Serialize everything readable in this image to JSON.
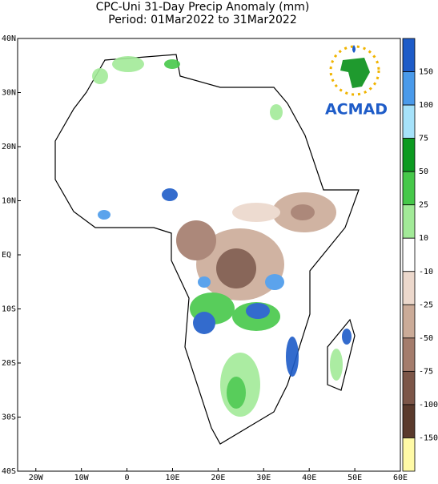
{
  "title": "CPC-Uni 31-Day Precip Anomaly (mm)",
  "subtitle": "Period: 01Mar2022 to 31Mar2022",
  "logo_text": "ACMAD",
  "map": {
    "xlim": [
      -24,
      60
    ],
    "ylim": [
      -40,
      40
    ],
    "xticks": [
      {
        "value": -20,
        "label": "20W"
      },
      {
        "value": -10,
        "label": "10W"
      },
      0,
      {
        "value": 10,
        "label": "10E"
      },
      {
        "value": 20,
        "label": "20E"
      },
      {
        "value": 30,
        "label": "30E"
      },
      {
        "value": 40,
        "label": "40E"
      },
      {
        "value": 50,
        "label": "50E"
      },
      {
        "value": 60,
        "label": "60E"
      }
    ],
    "yticks": [
      {
        "value": 40,
        "label": "40N"
      },
      {
        "value": 30,
        "label": "30N"
      },
      {
        "value": 20,
        "label": "20N"
      },
      {
        "value": 10,
        "label": "10N"
      },
      {
        "value": 0,
        "label": "EQ"
      },
      {
        "value": -10,
        "label": "10S"
      },
      {
        "value": -20,
        "label": "20S"
      },
      {
        "value": -30,
        "label": "30S"
      },
      {
        "value": -40,
        "label": "40S"
      }
    ]
  },
  "colorbar": {
    "levels": [
      150,
      100,
      75,
      50,
      25,
      10,
      -10,
      -25,
      -50,
      -75,
      -100,
      -150
    ],
    "colors": [
      "#1e5cc8",
      "#4a9aea",
      "#a6e2fa",
      "#0c9a20",
      "#46c84a",
      "#a2ea98",
      "#ffffff",
      "#ecd8cc",
      "#cbab98",
      "#a47c6c",
      "#7c5648",
      "#5a3a2c",
      "#fffaa6"
    ]
  }
}
